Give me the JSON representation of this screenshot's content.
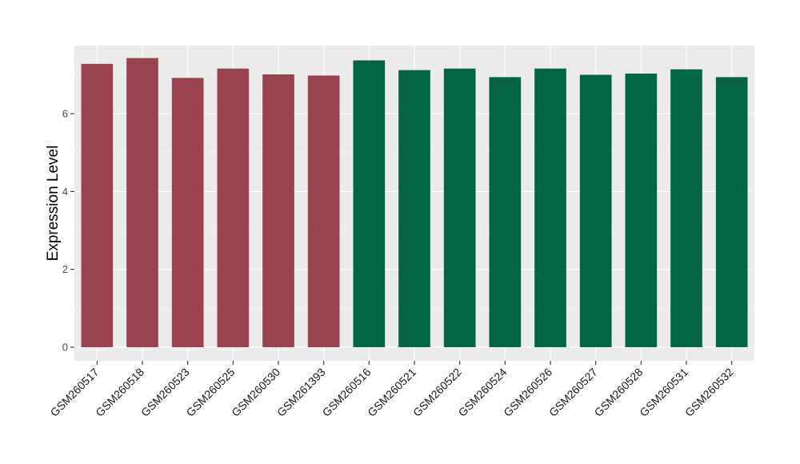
{
  "chart_data": {
    "type": "bar",
    "title": "",
    "xlabel": "",
    "ylabel": "Expression Level",
    "ylim": [
      -0.35,
      7.75
    ],
    "yticks": [
      0,
      2,
      4,
      6
    ],
    "grid": true,
    "legend": "none",
    "colors": {
      "panel_background": "#ebebeb",
      "grid_major": "#ffffff",
      "grid_minor": "#f5f5f5",
      "group_1": "#9a424f",
      "group_2": "#026645"
    },
    "categories": [
      "GSM260517",
      "GSM260518",
      "GSM260523",
      "GSM260525",
      "GSM260530",
      "GSM261393",
      "GSM260516",
      "GSM260521",
      "GSM260522",
      "GSM260524",
      "GSM260526",
      "GSM260527",
      "GSM260528",
      "GSM260531",
      "GSM260532"
    ],
    "values": [
      7.28,
      7.43,
      6.92,
      7.16,
      7.01,
      6.98,
      7.37,
      7.12,
      7.16,
      6.94,
      7.16,
      7.0,
      7.03,
      7.14,
      6.94
    ],
    "bar_groups": [
      1,
      1,
      1,
      1,
      1,
      1,
      2,
      2,
      2,
      2,
      2,
      2,
      2,
      2,
      2
    ]
  }
}
